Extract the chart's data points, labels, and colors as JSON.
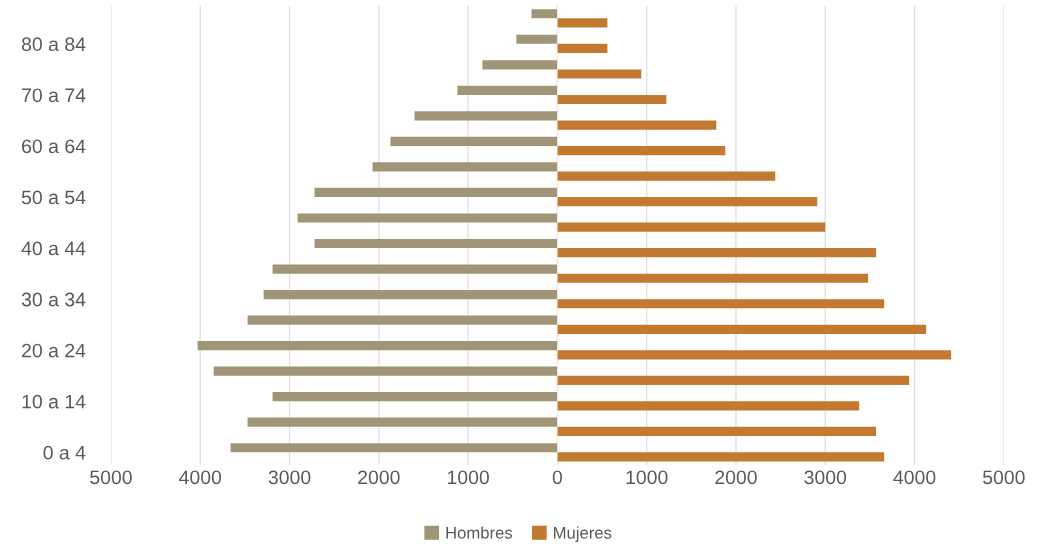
{
  "chart_data": [
    {
      "type": "bar",
      "orientation": "horizontal",
      "categories": [
        null,
        "80 a 84",
        null,
        "70 a 74",
        null,
        "60 a 64",
        null,
        "50 a 54",
        null,
        "40 a 44",
        null,
        "30 a 34",
        null,
        "20 a 24",
        null,
        "10 a 14",
        null,
        "0 a 4"
      ],
      "series": [
        {
          "name": "Hombres",
          "color": "#a09677",
          "values": [
            290,
            460,
            840,
            1120,
            1600,
            1870,
            2070,
            2720,
            2910,
            2720,
            3190,
            3290,
            3470,
            4030,
            3850,
            3190,
            3470,
            3660
          ]
        }
      ],
      "xlim": [
        5000,
        0
      ],
      "xticks": [
        5000,
        4000,
        3000,
        2000,
        1000,
        0
      ],
      "grid": "x",
      "legend": "bottom"
    },
    {
      "type": "bar",
      "orientation": "horizontal",
      "categories": [
        null,
        null,
        null,
        null,
        null,
        null,
        null,
        null,
        null,
        null,
        null,
        null,
        null,
        null,
        null,
        null,
        null,
        null
      ],
      "series": [
        {
          "name": "Mujeres",
          "color": "#c27a30",
          "values": [
            560,
            560,
            940,
            1220,
            1780,
            1880,
            2440,
            2910,
            3000,
            3570,
            3480,
            3660,
            4130,
            4410,
            3940,
            3380,
            3570,
            3660
          ]
        }
      ],
      "xlim": [
        0,
        5000
      ],
      "xticks": [
        {
          "value": 0,
          "label": null
        },
        1000,
        2000,
        3000,
        4000,
        5000
      ],
      "tick_labels": "x",
      "grid": "x",
      "legend": "bottom"
    }
  ]
}
